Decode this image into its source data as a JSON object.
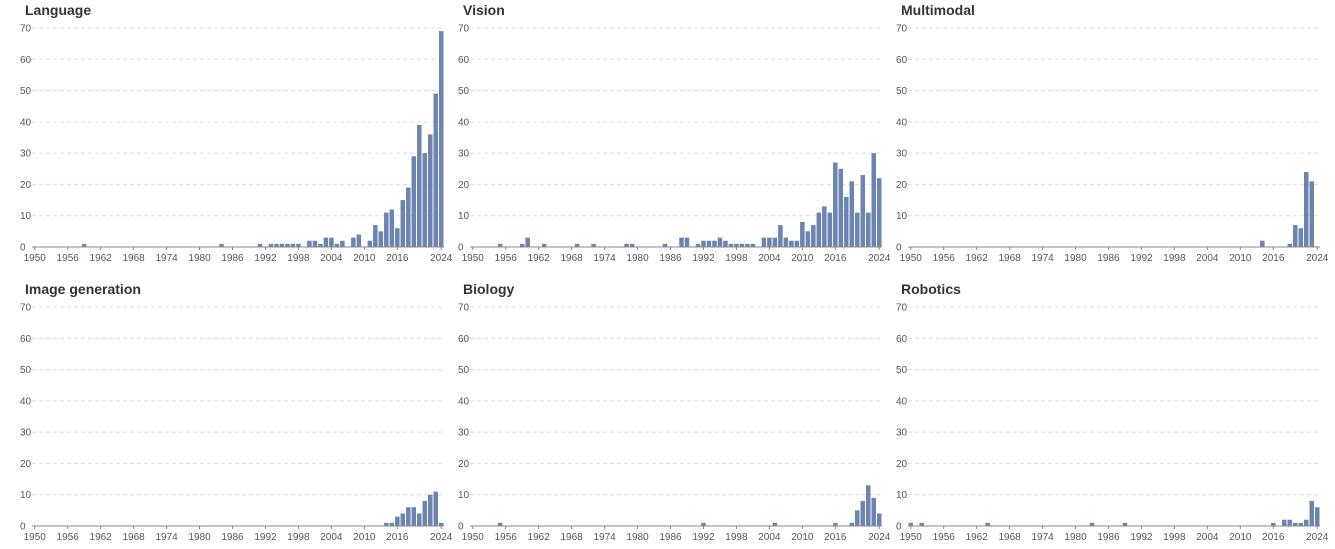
{
  "colors": {
    "bar": "#6b84b0",
    "grid": "#dcdcdc",
    "axis": "#888888",
    "title": "#333333",
    "text": "#555555"
  },
  "chart_data": [
    {
      "type": "bar",
      "title": "Language",
      "ylim": [
        0,
        70
      ],
      "yticks": [
        0,
        10,
        20,
        30,
        40,
        50,
        60,
        70
      ],
      "xticks": [
        1950,
        1956,
        1962,
        1968,
        1974,
        1980,
        1986,
        1992,
        1998,
        2004,
        2010,
        2016,
        2024
      ],
      "xlim": [
        1950,
        2024
      ],
      "grid": "horizontal dashed",
      "x": [
        1959,
        1984,
        1991,
        1993,
        1994,
        1995,
        1996,
        1997,
        1998,
        2000,
        2001,
        2002,
        2003,
        2004,
        2005,
        2006,
        2008,
        2009,
        2011,
        2012,
        2013,
        2014,
        2015,
        2016,
        2017,
        2018,
        2019,
        2020,
        2021,
        2022,
        2023,
        2024
      ],
      "values": [
        1,
        1,
        1,
        1,
        1,
        1,
        1,
        1,
        1,
        2,
        2,
        1,
        3,
        3,
        1,
        2,
        3,
        4,
        2,
        7,
        5,
        11,
        12,
        6,
        15,
        19,
        29,
        39,
        30,
        36,
        49,
        69
      ]
    },
    {
      "type": "bar",
      "title": "Vision",
      "ylim": [
        0,
        70
      ],
      "yticks": [
        0,
        10,
        20,
        30,
        40,
        50,
        60,
        70
      ],
      "xticks": [
        1950,
        1956,
        1962,
        1968,
        1974,
        1980,
        1986,
        1992,
        1998,
        2004,
        2010,
        2016,
        2024
      ],
      "xlim": [
        1950,
        2024
      ],
      "grid": "horizontal dashed",
      "x": [
        1955,
        1959,
        1960,
        1963,
        1969,
        1972,
        1978,
        1979,
        1985,
        1988,
        1989,
        1991,
        1992,
        1993,
        1994,
        1995,
        1996,
        1997,
        1998,
        1999,
        2000,
        2001,
        2003,
        2004,
        2005,
        2006,
        2007,
        2008,
        2009,
        2010,
        2011,
        2012,
        2013,
        2014,
        2015,
        2016,
        2017,
        2018,
        2019,
        2020,
        2021,
        2022,
        2023,
        2024
      ],
      "values": [
        1,
        1,
        3,
        1,
        1,
        1,
        1,
        1,
        1,
        3,
        3,
        1,
        2,
        2,
        2,
        3,
        2,
        1,
        1,
        1,
        1,
        1,
        3,
        3,
        3,
        7,
        3,
        2,
        2,
        8,
        5,
        7,
        11,
        13,
        11,
        27,
        25,
        16,
        21,
        11,
        23,
        11,
        30,
        22
      ]
    },
    {
      "type": "bar",
      "title": "Multimodal",
      "ylim": [
        0,
        70
      ],
      "yticks": [
        0,
        10,
        20,
        30,
        40,
        50,
        60,
        70
      ],
      "xticks": [
        1950,
        1956,
        1962,
        1968,
        1974,
        1980,
        1986,
        1992,
        1998,
        2004,
        2010,
        2016,
        2024
      ],
      "xlim": [
        1950,
        2024
      ],
      "grid": "horizontal dashed",
      "x": [
        2014,
        2019,
        2020,
        2021,
        2022,
        2023
      ],
      "values": [
        2,
        1,
        7,
        6,
        24,
        21
      ]
    },
    {
      "type": "bar",
      "title": "Image generation",
      "ylim": [
        0,
        70
      ],
      "yticks": [
        0,
        10,
        20,
        30,
        40,
        50,
        60,
        70
      ],
      "xticks": [
        1950,
        1956,
        1962,
        1968,
        1974,
        1980,
        1986,
        1992,
        1998,
        2004,
        2010,
        2016,
        2024
      ],
      "xlim": [
        1950,
        2024
      ],
      "grid": "horizontal dashed",
      "x": [
        2014,
        2015,
        2016,
        2017,
        2018,
        2019,
        2020,
        2021,
        2022,
        2023,
        2024
      ],
      "values": [
        1,
        1,
        3,
        4,
        6,
        6,
        4,
        8,
        10,
        11,
        1
      ]
    },
    {
      "type": "bar",
      "title": "Biology",
      "ylim": [
        0,
        70
      ],
      "yticks": [
        0,
        10,
        20,
        30,
        40,
        50,
        60,
        70
      ],
      "xticks": [
        1950,
        1956,
        1962,
        1968,
        1974,
        1980,
        1986,
        1992,
        1998,
        2004,
        2010,
        2016,
        2024
      ],
      "xlim": [
        1950,
        2024
      ],
      "grid": "horizontal dashed",
      "x": [
        1955,
        1992,
        2005,
        2016,
        2019,
        2020,
        2021,
        2022,
        2023,
        2024
      ],
      "values": [
        1,
        1,
        1,
        1,
        1,
        5,
        8,
        13,
        9,
        4
      ]
    },
    {
      "type": "bar",
      "title": "Robotics",
      "ylim": [
        0,
        70
      ],
      "yticks": [
        0,
        10,
        20,
        30,
        40,
        50,
        60,
        70
      ],
      "xticks": [
        1950,
        1956,
        1962,
        1968,
        1974,
        1980,
        1986,
        1992,
        1998,
        2004,
        2010,
        2016,
        2024
      ],
      "xlim": [
        1950,
        2024
      ],
      "grid": "horizontal dashed",
      "x": [
        1950,
        1952,
        1964,
        1983,
        1989,
        2016,
        2018,
        2019,
        2020,
        2021,
        2022,
        2023,
        2024
      ],
      "values": [
        1,
        1,
        1,
        1,
        1,
        1,
        2,
        2,
        1,
        1,
        2,
        8,
        6
      ]
    }
  ]
}
